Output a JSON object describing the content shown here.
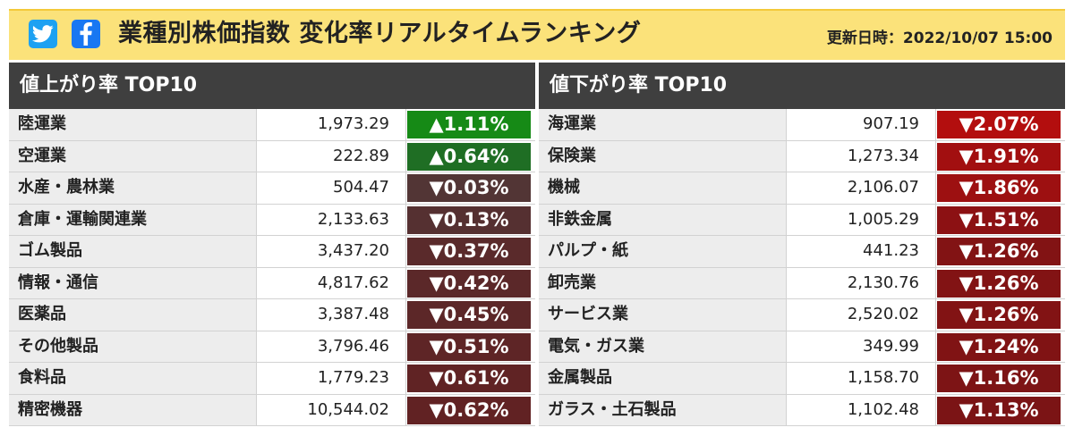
{
  "header": {
    "title": "業種別株価指数 変化率リアルタイムランキング",
    "updated": "更新日時：2022/10/07 15:00",
    "twitter_icon": "twitter-icon",
    "facebook_icon": "facebook-icon",
    "twitter_color": "#1da1f2",
    "facebook_color": "#1877f2"
  },
  "gainers": {
    "title": "値上がり率 TOP10",
    "rows": [
      {
        "name": "陸運業",
        "value": "1,973.29",
        "change": "▲1.11%",
        "color": "#168a16"
      },
      {
        "name": "空運業",
        "value": "222.89",
        "change": "▲0.64%",
        "color": "#1f6e24"
      },
      {
        "name": "水産・農林業",
        "value": "504.47",
        "change": "▼0.03%",
        "color": "#523535"
      },
      {
        "name": "倉庫・運輸関連業",
        "value": "2,133.63",
        "change": "▼0.13%",
        "color": "#553031"
      },
      {
        "name": "ゴム製品",
        "value": "3,437.20",
        "change": "▼0.37%",
        "color": "#5a2a2b"
      },
      {
        "name": "情報・通信",
        "value": "4,817.62",
        "change": "▼0.42%",
        "color": "#5b2829"
      },
      {
        "name": "医薬品",
        "value": "3,387.48",
        "change": "▼0.45%",
        "color": "#5c2728"
      },
      {
        "name": "その他製品",
        "value": "3,796.46",
        "change": "▼0.51%",
        "color": "#5e2526"
      },
      {
        "name": "食料品",
        "value": "1,779.23",
        "change": "▼0.61%",
        "color": "#602324"
      },
      {
        "name": "精密機器",
        "value": "10,544.02",
        "change": "▼0.62%",
        "color": "#612223"
      }
    ]
  },
  "losers": {
    "title": "値下がり率 TOP10",
    "rows": [
      {
        "name": "海運業",
        "value": "907.19",
        "change": "▼2.07%",
        "color": "#b30e0e"
      },
      {
        "name": "保険業",
        "value": "1,273.34",
        "change": "▼1.91%",
        "color": "#a20f10"
      },
      {
        "name": "機械",
        "value": "2,106.07",
        "change": "▼1.86%",
        "color": "#9d1011"
      },
      {
        "name": "非鉄金属",
        "value": "1,005.29",
        "change": "▼1.51%",
        "color": "#8c1113"
      },
      {
        "name": "パルプ・紙",
        "value": "441.23",
        "change": "▼1.26%",
        "color": "#821314"
      },
      {
        "name": "卸売業",
        "value": "2,130.76",
        "change": "▼1.26%",
        "color": "#821314"
      },
      {
        "name": "サービス業",
        "value": "2,520.02",
        "change": "▼1.26%",
        "color": "#821314"
      },
      {
        "name": "電気・ガス業",
        "value": "349.99",
        "change": "▼1.24%",
        "color": "#801314"
      },
      {
        "name": "金属製品",
        "value": "1,158.70",
        "change": "▼1.16%",
        "color": "#7d1415"
      },
      {
        "name": "ガラス・土石製品",
        "value": "1,102.48",
        "change": "▼1.13%",
        "color": "#7b1415"
      }
    ]
  }
}
